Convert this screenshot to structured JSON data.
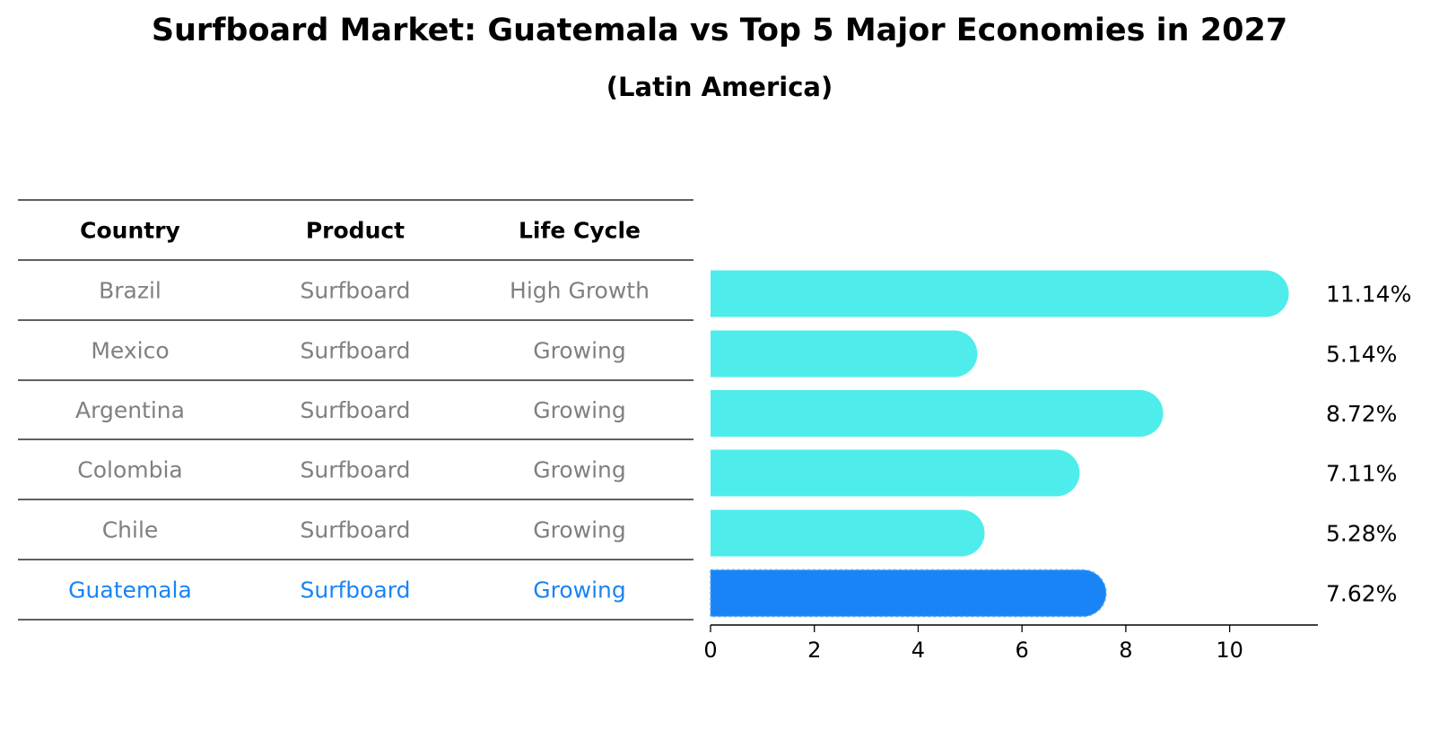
{
  "title": "Surfboard Market: Guatemala vs Top 5 Major Economies in 2027",
  "subtitle": "(Latin America)",
  "table": {
    "headers": [
      "Country",
      "Product",
      "Life Cycle"
    ],
    "rows": [
      [
        "Brazil",
        "Surfboard",
        "High Growth"
      ],
      [
        "Mexico",
        "Surfboard",
        "Growing"
      ],
      [
        "Argentina",
        "Surfboard",
        "Growing"
      ],
      [
        "Colombia",
        "Surfboard",
        "Growing"
      ],
      [
        "Chile",
        "Surfboard",
        "Growing"
      ],
      [
        "Guatemala",
        "Surfboard",
        "Growing"
      ]
    ],
    "highlight_row": 5
  },
  "chart_data": {
    "type": "bar",
    "orientation": "horizontal",
    "categories": [
      "Brazil",
      "Mexico",
      "Argentina",
      "Colombia",
      "Chile",
      "Guatemala"
    ],
    "values": [
      11.14,
      5.14,
      8.72,
      7.11,
      5.28,
      7.62
    ],
    "value_labels": [
      "11.14%",
      "5.14%",
      "8.72%",
      "7.11%",
      "5.28%",
      "7.62%"
    ],
    "highlight_index": 5,
    "xlim": [
      0,
      11.7
    ],
    "xticks": [
      0,
      2,
      4,
      6,
      8,
      10
    ],
    "xlabel": "",
    "ylabel": "",
    "grid": false
  },
  "colors": {
    "bar": "#4EEDEB",
    "highlight_bar": "#1984F5",
    "table_text": "#808080",
    "highlight_text": "#1984F5",
    "header_text": "#000000",
    "rule": "#000000"
  }
}
